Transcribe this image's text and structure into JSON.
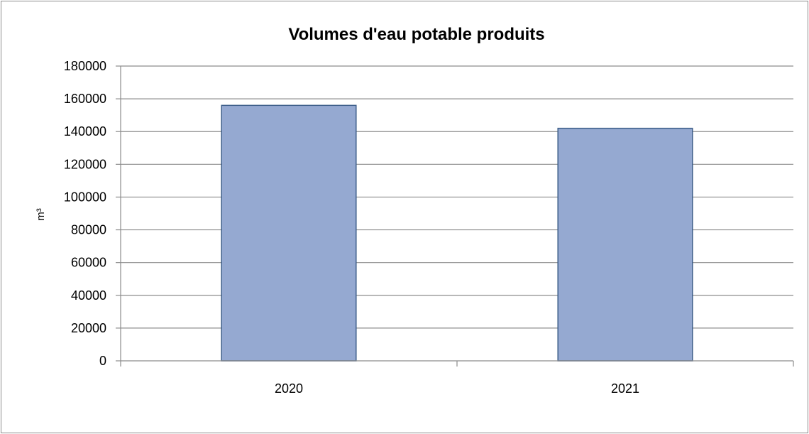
{
  "chart_data": {
    "type": "bar",
    "title": "Volumes d'eau potable produits",
    "xlabel": "",
    "ylabel": "m³",
    "categories": [
      "2020",
      "2021"
    ],
    "values": [
      156000,
      142000
    ],
    "ylim": [
      0,
      180000
    ],
    "yticks": [
      "0",
      "20000",
      "40000",
      "60000",
      "80000",
      "100000",
      "120000",
      "140000",
      "160000",
      "180000"
    ],
    "grid": true,
    "legend": "none",
    "colors": {
      "bar_fill": "#95a9d1",
      "bar_stroke": "#3e5f8a",
      "grid": "#8c8c8c",
      "axis": "#8c8c8c",
      "frame": "#8c8c8c"
    }
  }
}
